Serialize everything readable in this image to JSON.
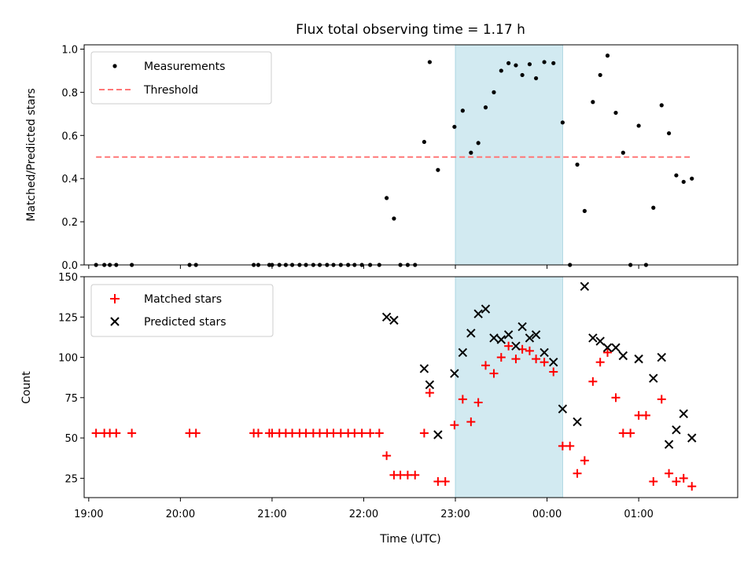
{
  "chart_data": {
    "type": "scatter",
    "title": "Flux total observing time = 1.17 h",
    "xlabel": "Time (UTC)",
    "x_ticks": [
      {
        "hour": 19,
        "label": "19:00"
      },
      {
        "hour": 20,
        "label": "20:00"
      },
      {
        "hour": 21,
        "label": "21:00"
      },
      {
        "hour": 22,
        "label": "22:00"
      },
      {
        "hour": 23,
        "label": "23:00"
      },
      {
        "hour": 24,
        "label": "00:00"
      },
      {
        "hour": 25,
        "label": "01:00"
      }
    ],
    "xlim_hours": [
      18.95,
      26.08
    ],
    "shaded_span_hours": [
      23.0,
      24.17
    ],
    "shaded_color": "#add8e6",
    "top_panel": {
      "ylabel": "Matched/Predicted stars",
      "ylim": [
        0,
        1.02
      ],
      "yticks": [
        "0.0",
        "0.2",
        "0.4",
        "0.6",
        "0.8",
        "1.0"
      ],
      "threshold": {
        "name": "Threshold",
        "value": 0.5,
        "x_range_hours": [
          19.08,
          25.58
        ],
        "color": "#ff7777"
      },
      "measurements": {
        "name": "Measurements",
        "color": "#000000",
        "points": [
          [
            19.08,
            0
          ],
          [
            19.17,
            0
          ],
          [
            19.23,
            0
          ],
          [
            19.3,
            0
          ],
          [
            19.47,
            0
          ],
          [
            20.1,
            0
          ],
          [
            20.17,
            0
          ],
          [
            20.8,
            0
          ],
          [
            20.85,
            0
          ],
          [
            20.97,
            0
          ],
          [
            21.0,
            0
          ],
          [
            21.08,
            0
          ],
          [
            21.15,
            0
          ],
          [
            21.22,
            0
          ],
          [
            21.3,
            0
          ],
          [
            21.37,
            0
          ],
          [
            21.45,
            0
          ],
          [
            21.52,
            0
          ],
          [
            21.6,
            0
          ],
          [
            21.67,
            0
          ],
          [
            21.75,
            0
          ],
          [
            21.83,
            0
          ],
          [
            21.9,
            0
          ],
          [
            21.98,
            0
          ],
          [
            22.07,
            0
          ],
          [
            22.17,
            0
          ],
          [
            22.25,
            0.31
          ],
          [
            22.33,
            0.215
          ],
          [
            22.4,
            0
          ],
          [
            22.48,
            0
          ],
          [
            22.56,
            0
          ],
          [
            22.66,
            0.57
          ],
          [
            22.72,
            0.94
          ],
          [
            22.81,
            0.44
          ],
          [
            22.99,
            0.64
          ],
          [
            23.08,
            0.715
          ],
          [
            23.17,
            0.52
          ],
          [
            23.25,
            0.565
          ],
          [
            23.33,
            0.73
          ],
          [
            23.42,
            0.8
          ],
          [
            23.5,
            0.9
          ],
          [
            23.58,
            0.935
          ],
          [
            23.66,
            0.925
          ],
          [
            23.73,
            0.88
          ],
          [
            23.81,
            0.93
          ],
          [
            23.88,
            0.865
          ],
          [
            23.97,
            0.94
          ],
          [
            24.07,
            0.935
          ],
          [
            24.17,
            0.66
          ],
          [
            24.25,
            0
          ],
          [
            24.33,
            0.465
          ],
          [
            24.41,
            0.25
          ],
          [
            24.5,
            0.755
          ],
          [
            24.58,
            0.88
          ],
          [
            24.66,
            0.97
          ],
          [
            24.75,
            0.705
          ],
          [
            24.83,
            0.52
          ],
          [
            24.91,
            0
          ],
          [
            25.0,
            0.645
          ],
          [
            25.08,
            0
          ],
          [
            25.16,
            0.265
          ],
          [
            25.25,
            0.74
          ],
          [
            25.33,
            0.61
          ],
          [
            25.41,
            0.415
          ],
          [
            25.49,
            0.385
          ],
          [
            25.58,
            0.4
          ]
        ]
      }
    },
    "bottom_panel": {
      "ylabel": "Count",
      "ylim": [
        13,
        150
      ],
      "yticks": [
        "25",
        "50",
        "75",
        "100",
        "125",
        "150"
      ],
      "matched": {
        "name": "Matched stars",
        "color": "#ff0000",
        "points": [
          [
            19.08,
            53
          ],
          [
            19.17,
            53
          ],
          [
            19.23,
            53
          ],
          [
            19.3,
            53
          ],
          [
            19.47,
            53
          ],
          [
            20.1,
            53
          ],
          [
            20.17,
            53
          ],
          [
            20.8,
            53
          ],
          [
            20.85,
            53
          ],
          [
            20.97,
            53
          ],
          [
            21.0,
            53
          ],
          [
            21.08,
            53
          ],
          [
            21.15,
            53
          ],
          [
            21.22,
            53
          ],
          [
            21.3,
            53
          ],
          [
            21.37,
            53
          ],
          [
            21.45,
            53
          ],
          [
            21.52,
            53
          ],
          [
            21.6,
            53
          ],
          [
            21.67,
            53
          ],
          [
            21.75,
            53
          ],
          [
            21.83,
            53
          ],
          [
            21.9,
            53
          ],
          [
            21.98,
            53
          ],
          [
            22.07,
            53
          ],
          [
            22.17,
            53
          ],
          [
            22.25,
            39
          ],
          [
            22.33,
            27
          ],
          [
            22.4,
            27
          ],
          [
            22.48,
            27
          ],
          [
            22.56,
            27
          ],
          [
            22.66,
            53
          ],
          [
            22.72,
            78
          ],
          [
            22.81,
            23
          ],
          [
            22.89,
            23
          ],
          [
            22.99,
            58
          ],
          [
            23.08,
            74
          ],
          [
            23.17,
            60
          ],
          [
            23.25,
            72
          ],
          [
            23.33,
            95
          ],
          [
            23.42,
            90
          ],
          [
            23.5,
            100
          ],
          [
            23.58,
            107
          ],
          [
            23.66,
            99
          ],
          [
            23.73,
            105
          ],
          [
            23.81,
            104
          ],
          [
            23.88,
            99
          ],
          [
            23.97,
            97
          ],
          [
            24.07,
            91
          ],
          [
            24.17,
            45
          ],
          [
            24.25,
            45
          ],
          [
            24.33,
            28
          ],
          [
            24.41,
            36
          ],
          [
            24.5,
            85
          ],
          [
            24.58,
            97
          ],
          [
            24.66,
            103
          ],
          [
            24.75,
            75
          ],
          [
            24.83,
            53
          ],
          [
            24.91,
            53
          ],
          [
            25.0,
            64
          ],
          [
            25.08,
            64
          ],
          [
            25.16,
            23
          ],
          [
            25.25,
            74
          ],
          [
            25.33,
            28
          ],
          [
            25.41,
            23
          ],
          [
            25.49,
            25
          ],
          [
            25.58,
            20
          ]
        ]
      },
      "predicted": {
        "name": "Predicted stars",
        "color": "#000000",
        "points": [
          [
            22.25,
            125
          ],
          [
            22.33,
            123
          ],
          [
            22.66,
            93
          ],
          [
            22.72,
            83
          ],
          [
            22.81,
            52
          ],
          [
            22.99,
            90
          ],
          [
            23.08,
            103
          ],
          [
            23.17,
            115
          ],
          [
            23.25,
            127
          ],
          [
            23.33,
            130
          ],
          [
            23.42,
            112
          ],
          [
            23.5,
            111
          ],
          [
            23.58,
            114
          ],
          [
            23.66,
            107
          ],
          [
            23.73,
            119
          ],
          [
            23.81,
            112
          ],
          [
            23.88,
            114
          ],
          [
            23.97,
            103
          ],
          [
            24.07,
            97
          ],
          [
            24.17,
            68
          ],
          [
            24.33,
            60
          ],
          [
            24.41,
            144
          ],
          [
            24.5,
            112
          ],
          [
            24.58,
            110
          ],
          [
            24.66,
            106
          ],
          [
            24.75,
            106
          ],
          [
            24.83,
            101
          ],
          [
            25.0,
            99
          ],
          [
            25.16,
            87
          ],
          [
            25.25,
            100
          ],
          [
            25.33,
            46
          ],
          [
            25.41,
            55
          ],
          [
            25.49,
            65
          ],
          [
            25.58,
            50
          ]
        ]
      }
    }
  }
}
